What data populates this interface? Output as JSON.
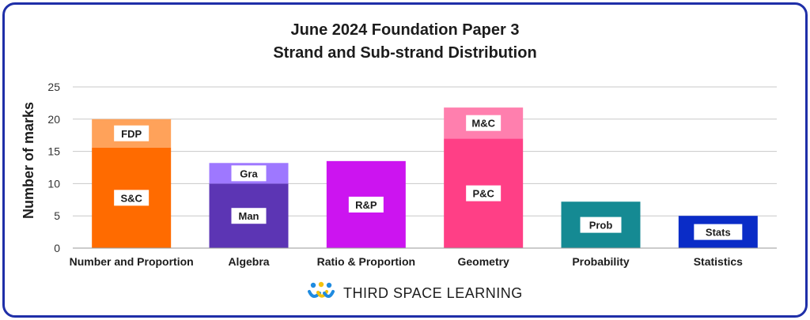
{
  "chart_data": {
    "type": "bar",
    "stacked": true,
    "title": "June 2024 Foundation Paper 3",
    "subtitle": "Strand and Sub-strand Distribution",
    "xlabel": "",
    "ylabel": "Number of marks",
    "ylim": [
      0,
      25
    ],
    "yticks": [
      0,
      5,
      10,
      15,
      20,
      25
    ],
    "grid": true,
    "categories": [
      "Number and Proportion",
      "Algebra",
      "Ratio & Proportion",
      "Geometry",
      "Probability",
      "Statistics"
    ],
    "bars": [
      {
        "category": "Number and Proportion",
        "segments": [
          {
            "label": "S&C",
            "value": 15.6,
            "color": "#ff6b00"
          },
          {
            "label": "FDP",
            "value": 4.4,
            "color": "#ffa25a"
          }
        ]
      },
      {
        "category": "Algebra",
        "segments": [
          {
            "label": "Man",
            "value": 10.0,
            "color": "#5c35b4"
          },
          {
            "label": "Gra",
            "value": 3.2,
            "color": "#9e78ff"
          }
        ]
      },
      {
        "category": "Ratio & Proportion",
        "segments": [
          {
            "label": "R&P",
            "value": 13.5,
            "color": "#cc14f0"
          }
        ]
      },
      {
        "category": "Geometry",
        "segments": [
          {
            "label": "P&C",
            "value": 17.0,
            "color": "#ff3f86"
          },
          {
            "label": "M&C",
            "value": 4.8,
            "color": "#ff7fae"
          }
        ]
      },
      {
        "category": "Probability",
        "segments": [
          {
            "label": "Prob",
            "value": 7.2,
            "color": "#158a93"
          }
        ]
      },
      {
        "category": "Statistics",
        "segments": [
          {
            "label": "Stats",
            "value": 5.0,
            "color": "#0a2cc7"
          }
        ]
      }
    ]
  },
  "brand": {
    "name": "THIRD SPACE LEARNING",
    "logo_icon": "tsl-logo-icon",
    "colors": {
      "blue": "#1f8be0",
      "yellow": "#f4c20d",
      "frame": "#1f2fa8"
    }
  }
}
